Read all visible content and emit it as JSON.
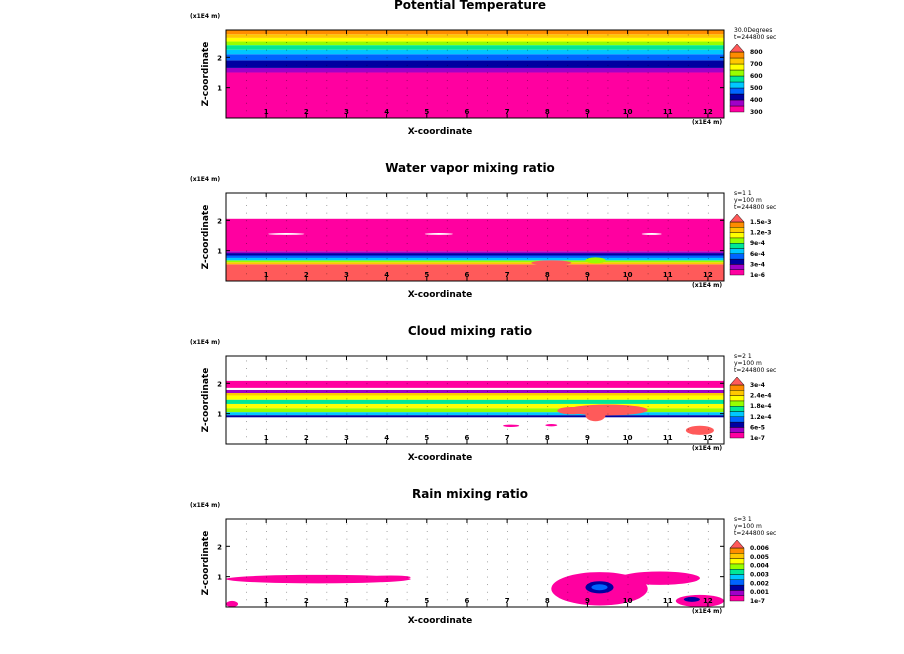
{
  "palette": [
    "#ff00a0",
    "#a000c8",
    "#0000a0",
    "#0064ff",
    "#00c8ff",
    "#00e896",
    "#96ff00",
    "#ffff00",
    "#ffc800",
    "#ff8c00",
    "#ff5a5a"
  ],
  "chart_data": [
    {
      "id": "potential-temperature",
      "type": "heatmap",
      "title": "Potential Temperature",
      "xlabel": "X-coordinate",
      "ylabel": "Z-coordinate",
      "x_unit": "(x1E4 m)",
      "z_unit": "(x1E4 m)",
      "xlim": [
        0,
        12.4
      ],
      "zlim": [
        0,
        2.9
      ],
      "xticks": [
        "1",
        "2",
        "3",
        "4",
        "5",
        "6",
        "7",
        "8",
        "9",
        "10",
        "11",
        "12"
      ],
      "zticks": [
        "1",
        "2"
      ],
      "info": [
        "30.0Degrees",
        "t=244800 sec"
      ],
      "colorbar": [
        "300",
        "400",
        "500",
        "600",
        "700",
        "800"
      ],
      "bands": [
        {
          "z0": 0.0,
          "z1": 1.5,
          "c": 0
        },
        {
          "z0": 1.5,
          "z1": 1.65,
          "c": 1
        },
        {
          "z0": 1.65,
          "z1": 1.9,
          "c": 2
        },
        {
          "z0": 1.9,
          "z1": 2.1,
          "c": 3
        },
        {
          "z0": 2.1,
          "z1": 2.25,
          "c": 4
        },
        {
          "z0": 2.25,
          "z1": 2.4,
          "c": 5
        },
        {
          "z0": 2.4,
          "z1": 2.52,
          "c": 6
        },
        {
          "z0": 2.52,
          "z1": 2.64,
          "c": 7
        },
        {
          "z0": 2.64,
          "z1": 2.76,
          "c": 8
        },
        {
          "z0": 2.76,
          "z1": 2.9,
          "c": 9
        }
      ],
      "blobs": []
    },
    {
      "id": "water-vapor-mixing-ratio",
      "type": "heatmap",
      "title": "Water vapor mixing ratio",
      "xlabel": "X-coordinate",
      "ylabel": "Z-coordinate",
      "x_unit": "(x1E4 m)",
      "z_unit": "(x1E4 m)",
      "xlim": [
        0,
        12.4
      ],
      "zlim": [
        0,
        2.9
      ],
      "xticks": [
        "1",
        "2",
        "3",
        "4",
        "5",
        "6",
        "7",
        "8",
        "9",
        "10",
        "11",
        "12"
      ],
      "zticks": [
        "1",
        "2"
      ],
      "info": [
        "s=1 1",
        "y=100 m",
        "t=244800 sec"
      ],
      "colorbar": [
        "1e-6",
        "3e-4",
        "6e-4",
        "9e-4",
        "1.2e-3",
        "1.5e-3"
      ],
      "bands": [
        {
          "z0": 0.0,
          "z1": 0.55,
          "c": 10
        },
        {
          "z0": 0.55,
          "z1": 0.62,
          "c": 8
        },
        {
          "z0": 0.62,
          "z1": 0.68,
          "c": 6
        },
        {
          "z0": 0.68,
          "z1": 0.76,
          "c": 4
        },
        {
          "z0": 0.76,
          "z1": 0.84,
          "c": 3
        },
        {
          "z0": 0.84,
          "z1": 0.92,
          "c": 2
        },
        {
          "z0": 0.92,
          "z1": 0.98,
          "c": 1
        },
        {
          "z0": 0.98,
          "z1": 2.05,
          "c": 0
        }
      ],
      "blobs": [
        {
          "x": 1.5,
          "z": 1.55,
          "rx": 0.45,
          "rz": 0.03,
          "c": -1
        },
        {
          "x": 5.3,
          "z": 1.55,
          "rx": 0.35,
          "rz": 0.03,
          "c": -1
        },
        {
          "x": 10.6,
          "z": 1.55,
          "rx": 0.25,
          "rz": 0.03,
          "c": -1
        },
        {
          "x": 8.1,
          "z": 0.6,
          "rx": 0.5,
          "rz": 0.08,
          "c": 10
        },
        {
          "x": 9.2,
          "z": 0.68,
          "rx": 0.25,
          "rz": 0.1,
          "c": 6
        }
      ]
    },
    {
      "id": "cloud-mixing-ratio",
      "type": "heatmap",
      "title": "Cloud mixing ratio",
      "xlabel": "X-coordinate",
      "ylabel": "Z-coordinate",
      "x_unit": "(x1E4 m)",
      "z_unit": "(x1E4 m)",
      "xlim": [
        0,
        12.4
      ],
      "zlim": [
        0,
        2.9
      ],
      "xticks": [
        "1",
        "2",
        "3",
        "4",
        "5",
        "6",
        "7",
        "8",
        "9",
        "10",
        "11",
        "12"
      ],
      "zticks": [
        "1",
        "2"
      ],
      "info": [
        "s=2 1",
        "y=100 m",
        "t=244800 sec"
      ],
      "colorbar": [
        "1e-7",
        "6e-5",
        "1.2e-4",
        "1.8e-4",
        "2.4e-4",
        "3e-4"
      ],
      "bands": [
        {
          "z0": 0.88,
          "z1": 0.95,
          "c": 2
        },
        {
          "z0": 0.95,
          "z1": 1.05,
          "c": 4
        },
        {
          "z0": 1.05,
          "z1": 1.18,
          "c": 6
        },
        {
          "z0": 1.18,
          "z1": 1.32,
          "c": 7
        },
        {
          "z0": 1.32,
          "z1": 1.46,
          "c": 5
        },
        {
          "z0": 1.46,
          "z1": 1.6,
          "c": 7
        },
        {
          "z0": 1.6,
          "z1": 1.68,
          "c": 8
        },
        {
          "z0": 1.68,
          "z1": 1.78,
          "c": 1
        },
        {
          "z0": 1.85,
          "z1": 2.08,
          "c": 0
        }
      ],
      "blobs": [
        {
          "x": 8.6,
          "z": 1.1,
          "rx": 0.35,
          "rz": 0.12,
          "c": 10
        },
        {
          "x": 9.5,
          "z": 1.12,
          "rx": 1.0,
          "rz": 0.18,
          "c": 10
        },
        {
          "x": 9.2,
          "z": 0.95,
          "rx": 0.25,
          "rz": 0.2,
          "c": 10
        },
        {
          "x": 11.8,
          "z": 0.45,
          "rx": 0.35,
          "rz": 0.15,
          "c": 10
        },
        {
          "x": 7.1,
          "z": 0.6,
          "rx": 0.2,
          "rz": 0.04,
          "c": 0
        },
        {
          "x": 8.1,
          "z": 0.62,
          "rx": 0.15,
          "rz": 0.04,
          "c": 0
        }
      ]
    },
    {
      "id": "rain-mixing-ratio",
      "type": "heatmap",
      "title": "Rain mixing ratio",
      "xlabel": "X-coordinate",
      "ylabel": "Z-coordinate",
      "x_unit": "(x1E4 m)",
      "z_unit": "(x1E4 m)",
      "xlim": [
        0,
        12.4
      ],
      "zlim": [
        0,
        2.9
      ],
      "xticks": [
        "1",
        "2",
        "3",
        "4",
        "5",
        "6",
        "7",
        "8",
        "9",
        "10",
        "11",
        "12"
      ],
      "zticks": [
        "1",
        "2"
      ],
      "info": [
        "s=3 1",
        "y=100 m",
        "t=244800 sec"
      ],
      "colorbar": [
        "1e-7",
        "0.001",
        "0.002",
        "0.003",
        "0.004",
        "0.005",
        "0.006"
      ],
      "bands": [],
      "blobs": [
        {
          "x": 2.3,
          "z": 0.92,
          "rx": 2.3,
          "rz": 0.14,
          "c": 0
        },
        {
          "x": 4.1,
          "z": 0.98,
          "rx": 0.5,
          "rz": 0.06,
          "c": 0
        },
        {
          "x": 0.15,
          "z": 0.1,
          "rx": 0.15,
          "rz": 0.1,
          "c": 0
        },
        {
          "x": 9.3,
          "z": 0.6,
          "rx": 1.2,
          "rz": 0.55,
          "c": 0
        },
        {
          "x": 10.8,
          "z": 0.95,
          "rx": 1.0,
          "rz": 0.22,
          "c": 0
        },
        {
          "x": 11.8,
          "z": 0.2,
          "rx": 0.6,
          "rz": 0.2,
          "c": 0
        },
        {
          "x": 9.3,
          "z": 0.65,
          "rx": 0.35,
          "rz": 0.2,
          "c": 2
        },
        {
          "x": 9.3,
          "z": 0.65,
          "rx": 0.2,
          "rz": 0.1,
          "c": 3
        },
        {
          "x": 11.6,
          "z": 0.25,
          "rx": 0.2,
          "rz": 0.08,
          "c": 2
        }
      ]
    }
  ]
}
